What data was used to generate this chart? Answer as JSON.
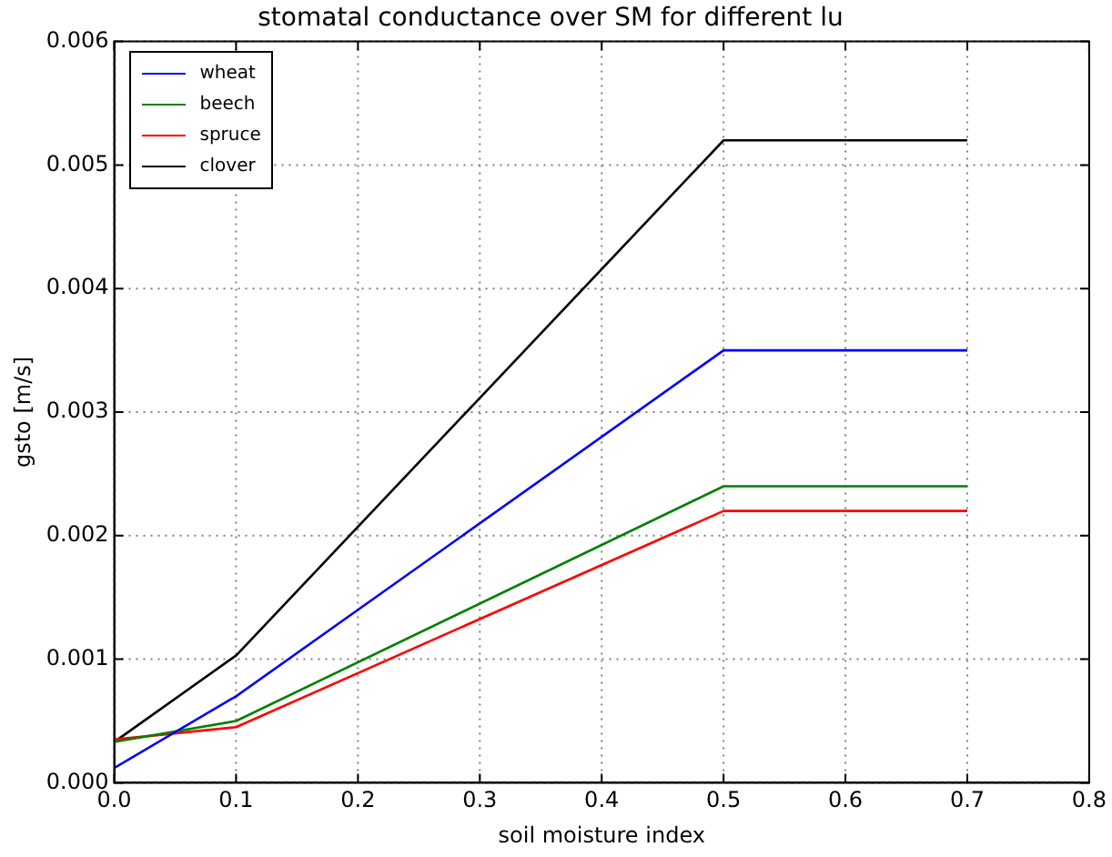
{
  "chart_data": {
    "type": "line",
    "title": "stomatal conductance over SM for different lu",
    "xlabel": "soil moisture index",
    "ylabel": "gsto [m/s]",
    "x": [
      0,
      0.1,
      0.5,
      0.7
    ],
    "series": [
      {
        "name": "wheat",
        "color": "#0000ff",
        "values": [
          0.00012,
          0.0007,
          0.0035,
          0.0035
        ]
      },
      {
        "name": "beech",
        "color": "#008000",
        "values": [
          0.00033,
          0.0005,
          0.0024,
          0.0024
        ]
      },
      {
        "name": "spruce",
        "color": "#ff0000",
        "values": [
          0.00035,
          0.00045,
          0.0022,
          0.0022
        ]
      },
      {
        "name": "clover",
        "color": "#000000",
        "values": [
          0.00033,
          0.00103,
          0.0052,
          0.0052
        ]
      }
    ],
    "xlim": [
      0,
      0.8
    ],
    "xticks": [
      {
        "value": 0,
        "label": "0.0"
      },
      0.1,
      0.2,
      0.3,
      0.4,
      0.5,
      0.6,
      0.7,
      0.8
    ],
    "ylim": [
      0,
      0.006
    ],
    "yticks": [
      {
        "value": 0,
        "label": "0.000"
      },
      0.001,
      0.002,
      0.003,
      0.004,
      0.005,
      0.006
    ],
    "grid": true,
    "legend": "top left",
    "marker": "none",
    "line_style": "solid"
  }
}
